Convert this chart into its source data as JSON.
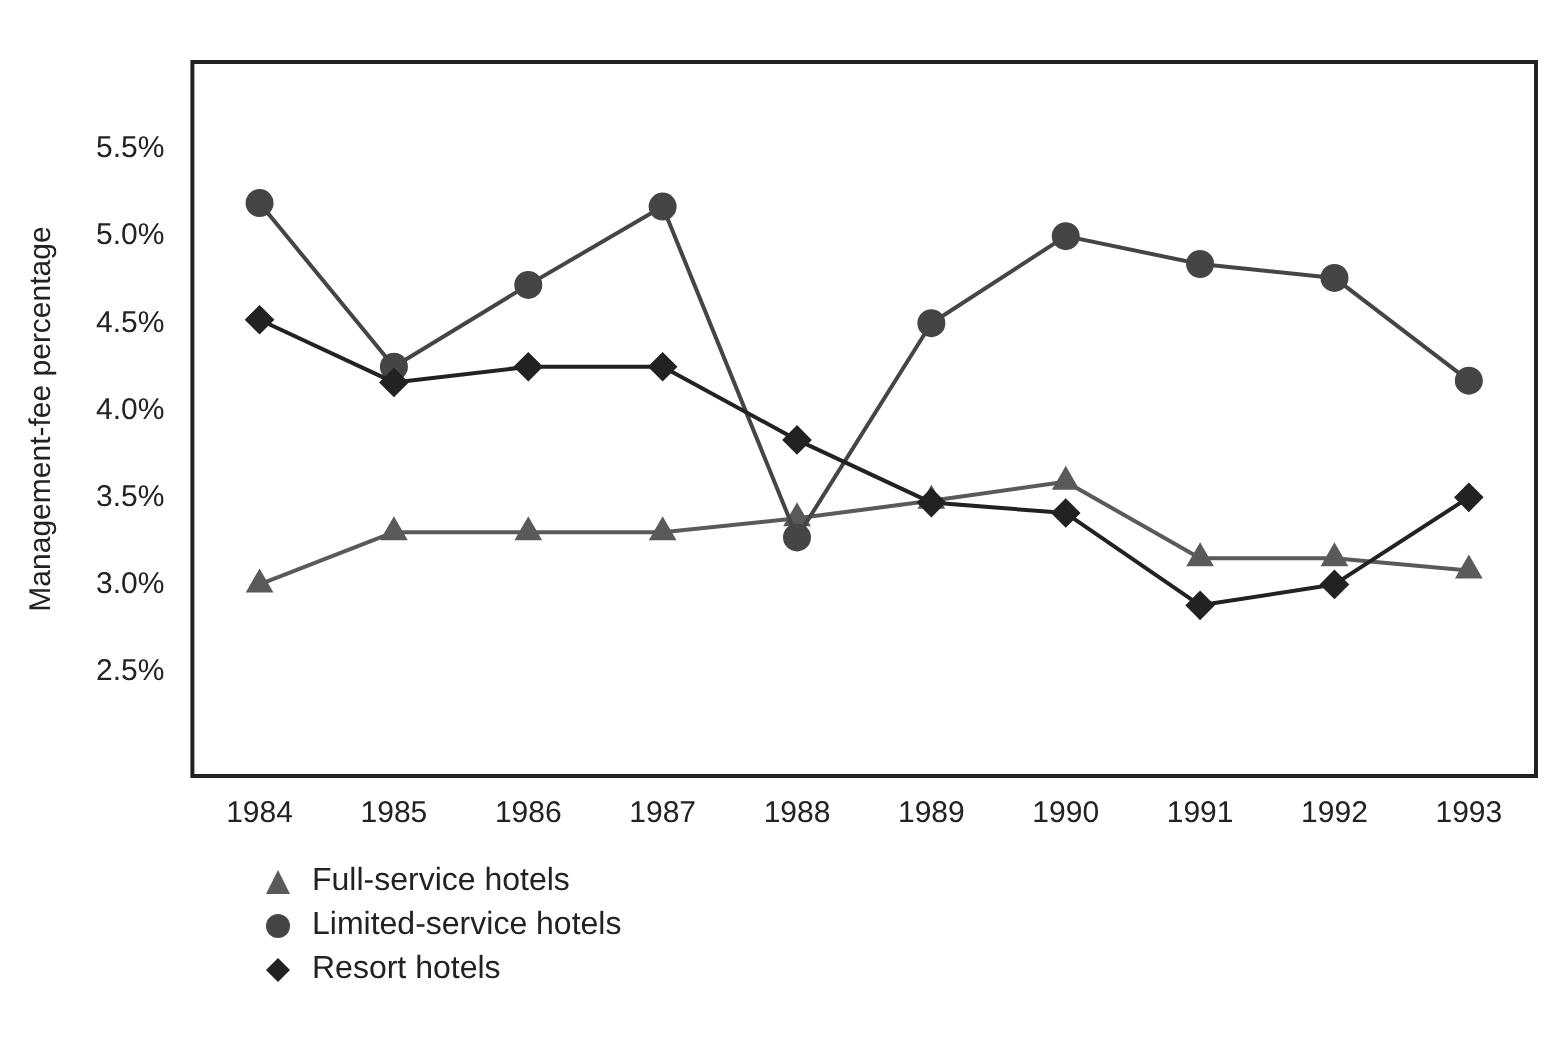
{
  "chart_data": {
    "type": "line",
    "ylabel": "Management-fee percentage",
    "categories": [
      "1984",
      "1985",
      "1986",
      "1987",
      "1988",
      "1989",
      "1990",
      "1991",
      "1992",
      "1993"
    ],
    "series": [
      {
        "name": "Full-service hotels",
        "color": "#5a5a5a",
        "marker": "triangle",
        "values": [
          3.0,
          3.3,
          3.3,
          3.3,
          3.38,
          3.48,
          3.59,
          3.15,
          3.15,
          3.08
        ]
      },
      {
        "name": "Limited-service hotels",
        "color": "#454545",
        "marker": "circle",
        "values": [
          5.19,
          4.25,
          4.72,
          5.17,
          3.27,
          4.5,
          5.0,
          4.84,
          4.76,
          4.17
        ]
      },
      {
        "name": "Resort hotels",
        "color": "#222222",
        "marker": "diamond",
        "values": [
          4.52,
          4.16,
          4.25,
          4.25,
          3.83,
          3.47,
          3.41,
          2.88,
          3.0,
          3.5
        ]
      }
    ],
    "ylim": [
      1.9,
      6.0
    ],
    "yticks": [
      {
        "value": 2.5,
        "label": "2.5%"
      },
      {
        "value": 3.0,
        "label": "3.0%"
      },
      {
        "value": 3.5,
        "label": "3.5%"
      },
      {
        "value": 4.0,
        "label": "4.0%"
      },
      {
        "value": 4.5,
        "label": "4.5%"
      },
      {
        "value": 5.0,
        "label": "5.0%"
      },
      {
        "value": 5.5,
        "label": "5.5%"
      }
    ],
    "legend": "bottom left",
    "line_style": "solid"
  }
}
